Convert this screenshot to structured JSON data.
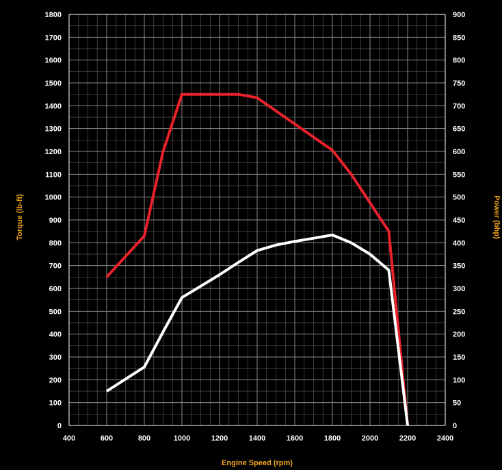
{
  "chart_data": {
    "type": "line",
    "xlabel": "Engine Speed (rpm)",
    "ylabel_left": "Torque (lb-ft)",
    "ylabel_right": "Power (bhp)",
    "xlim": [
      400,
      2400
    ],
    "ylim_left": [
      0,
      1800
    ],
    "ylim_right": [
      0,
      900
    ],
    "grid": true,
    "x_ticks": [
      "400",
      "600",
      "800",
      "1000",
      "1200",
      "1400",
      "1600",
      "1800",
      "2000",
      "2200",
      "2400"
    ],
    "y_left_ticks": [
      "0",
      "100",
      "200",
      "300",
      "400",
      "500",
      "600",
      "700",
      "800",
      "900",
      "1000",
      "1100",
      "1200",
      "1300",
      "1400",
      "1500",
      "1600",
      "1700",
      "1800"
    ],
    "y_right_ticks": [
      "0",
      "50",
      "100",
      "150",
      "200",
      "250",
      "300",
      "350",
      "400",
      "450",
      "500",
      "550",
      "600",
      "650",
      "700",
      "750",
      "800",
      "850",
      "900"
    ],
    "series": [
      {
        "axis": "left",
        "color": "#e8212b",
        "x": [
          600,
          800,
          900,
          1000,
          1300,
          1400,
          1600,
          1800,
          1900,
          2000,
          2100,
          2200
        ],
        "y": [
          650,
          830,
          1200,
          1450,
          1450,
          1435,
          1320,
          1205,
          1100,
          975,
          850,
          0
        ]
      },
      {
        "axis": "right",
        "color": "#ffffff",
        "x": [
          600,
          800,
          900,
          1000,
          1100,
          1200,
          1300,
          1400,
          1500,
          1600,
          1700,
          1800,
          1900,
          2000,
          2100,
          2200
        ],
        "y": [
          75,
          128,
          205,
          280,
          305,
          330,
          357,
          383,
          395,
          403,
          410,
          417,
          400,
          375,
          340,
          0
        ]
      }
    ]
  }
}
